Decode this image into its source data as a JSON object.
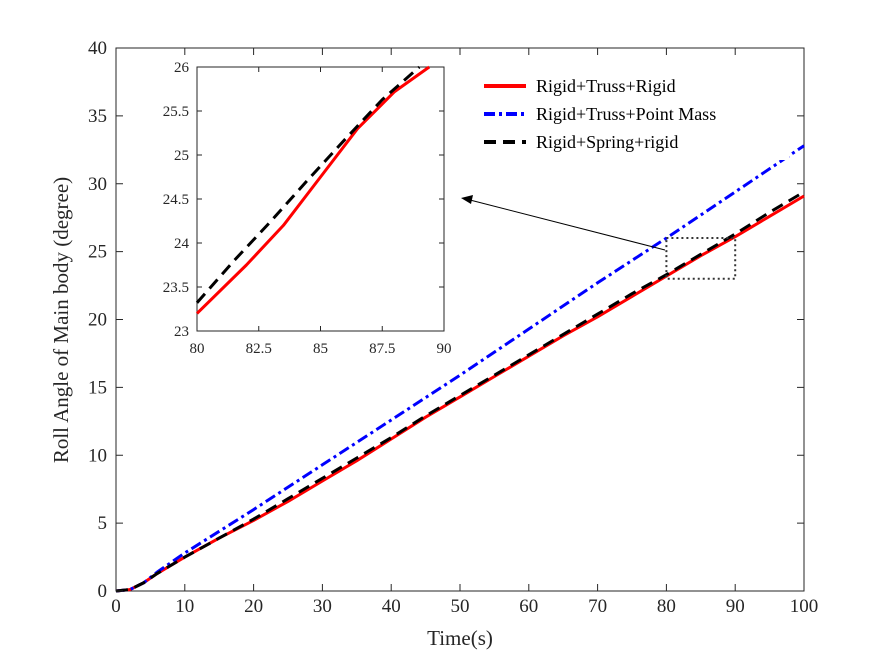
{
  "chart_data": [
    {
      "type": "line",
      "title": "",
      "xlabel": "Time(s)",
      "ylabel": "Roll Angle of Main body (degree)",
      "xlim": [
        0,
        100
      ],
      "ylim": [
        0,
        40
      ],
      "xticks": [
        0,
        10,
        20,
        30,
        40,
        50,
        60,
        70,
        80,
        90,
        100
      ],
      "yticks": [
        0,
        5,
        10,
        15,
        20,
        25,
        30,
        35,
        40
      ],
      "xtick_labels": [
        "0",
        "10",
        "20",
        "30",
        "40",
        "50",
        "60",
        "70",
        "80",
        "90",
        "100"
      ],
      "ytick_labels": [
        "0",
        "5",
        "10",
        "15",
        "20",
        "25",
        "30",
        "35",
        "40"
      ],
      "grid": false,
      "legend_position": "top-right",
      "series": [
        {
          "name": "Rigid+Truss+Rigid",
          "color": "#ff0000",
          "style": "solid",
          "x": [
            0,
            2,
            4,
            6,
            10,
            15,
            20,
            25,
            30,
            35,
            40,
            45,
            50,
            55,
            60,
            65,
            70,
            75,
            80,
            85,
            90,
            95,
            100
          ],
          "y": [
            0,
            0.1,
            0.6,
            1.3,
            2.5,
            3.9,
            5.2,
            6.6,
            8.1,
            9.6,
            11.2,
            12.8,
            14.3,
            15.8,
            17.3,
            18.8,
            20.2,
            21.7,
            23.2,
            24.7,
            26.1,
            27.6,
            29.1
          ]
        },
        {
          "name": "Rigid+Truss+Point Mass",
          "color": "#0000ff",
          "style": "dashdot",
          "x": [
            0,
            2,
            4,
            6,
            10,
            20,
            30,
            40,
            50,
            60,
            70,
            80,
            90,
            100
          ],
          "y": [
            0,
            0.1,
            0.6,
            1.4,
            2.8,
            6.0,
            9.3,
            12.6,
            15.9,
            19.3,
            22.7,
            26.0,
            29.4,
            32.8
          ]
        },
        {
          "name": "Rigid+Spring+rigid",
          "color": "#000000",
          "style": "dashed",
          "x": [
            0,
            2,
            4,
            6,
            10,
            15,
            20,
            25,
            30,
            35,
            40,
            45,
            50,
            55,
            60,
            65,
            70,
            75,
            80,
            85,
            90,
            95,
            100
          ],
          "y": [
            0,
            0.1,
            0.6,
            1.3,
            2.5,
            3.9,
            5.3,
            6.8,
            8.3,
            9.8,
            11.3,
            12.9,
            14.4,
            15.9,
            17.4,
            18.9,
            20.4,
            21.9,
            23.3,
            24.8,
            26.3,
            27.9,
            29.4
          ]
        }
      ],
      "zoom_box": {
        "x": [
          80,
          90
        ],
        "y": [
          23,
          26
        ],
        "color": "#333333",
        "style": "dotted"
      }
    },
    {
      "type": "line",
      "title": "",
      "xlabel": "",
      "ylabel": "",
      "xlim": [
        80,
        90
      ],
      "ylim": [
        23,
        26
      ],
      "xticks": [
        80,
        82.5,
        85,
        87.5,
        90
      ],
      "yticks": [
        23,
        23.5,
        24,
        24.5,
        25,
        25.5,
        26
      ],
      "xtick_labels": [
        "80",
        "82.5",
        "85",
        "87.5",
        "90"
      ],
      "ytick_labels": [
        "23",
        "23.5",
        "24",
        "24.5",
        "25",
        "25.5",
        "26"
      ],
      "grid": false,
      "series": [
        {
          "color": "#ff0000",
          "style": "solid",
          "x": [
            80,
            82,
            83.5,
            85,
            86.5,
            88,
            89.4
          ],
          "y": [
            23.2,
            23.75,
            24.2,
            24.75,
            25.3,
            25.72,
            26.0
          ]
        },
        {
          "color": "#000000",
          "style": "dashed",
          "x": [
            80,
            81.5,
            83,
            84.5,
            86,
            87.5,
            89
          ],
          "y": [
            23.32,
            23.8,
            24.25,
            24.72,
            25.18,
            25.63,
            26.0
          ]
        }
      ]
    }
  ]
}
